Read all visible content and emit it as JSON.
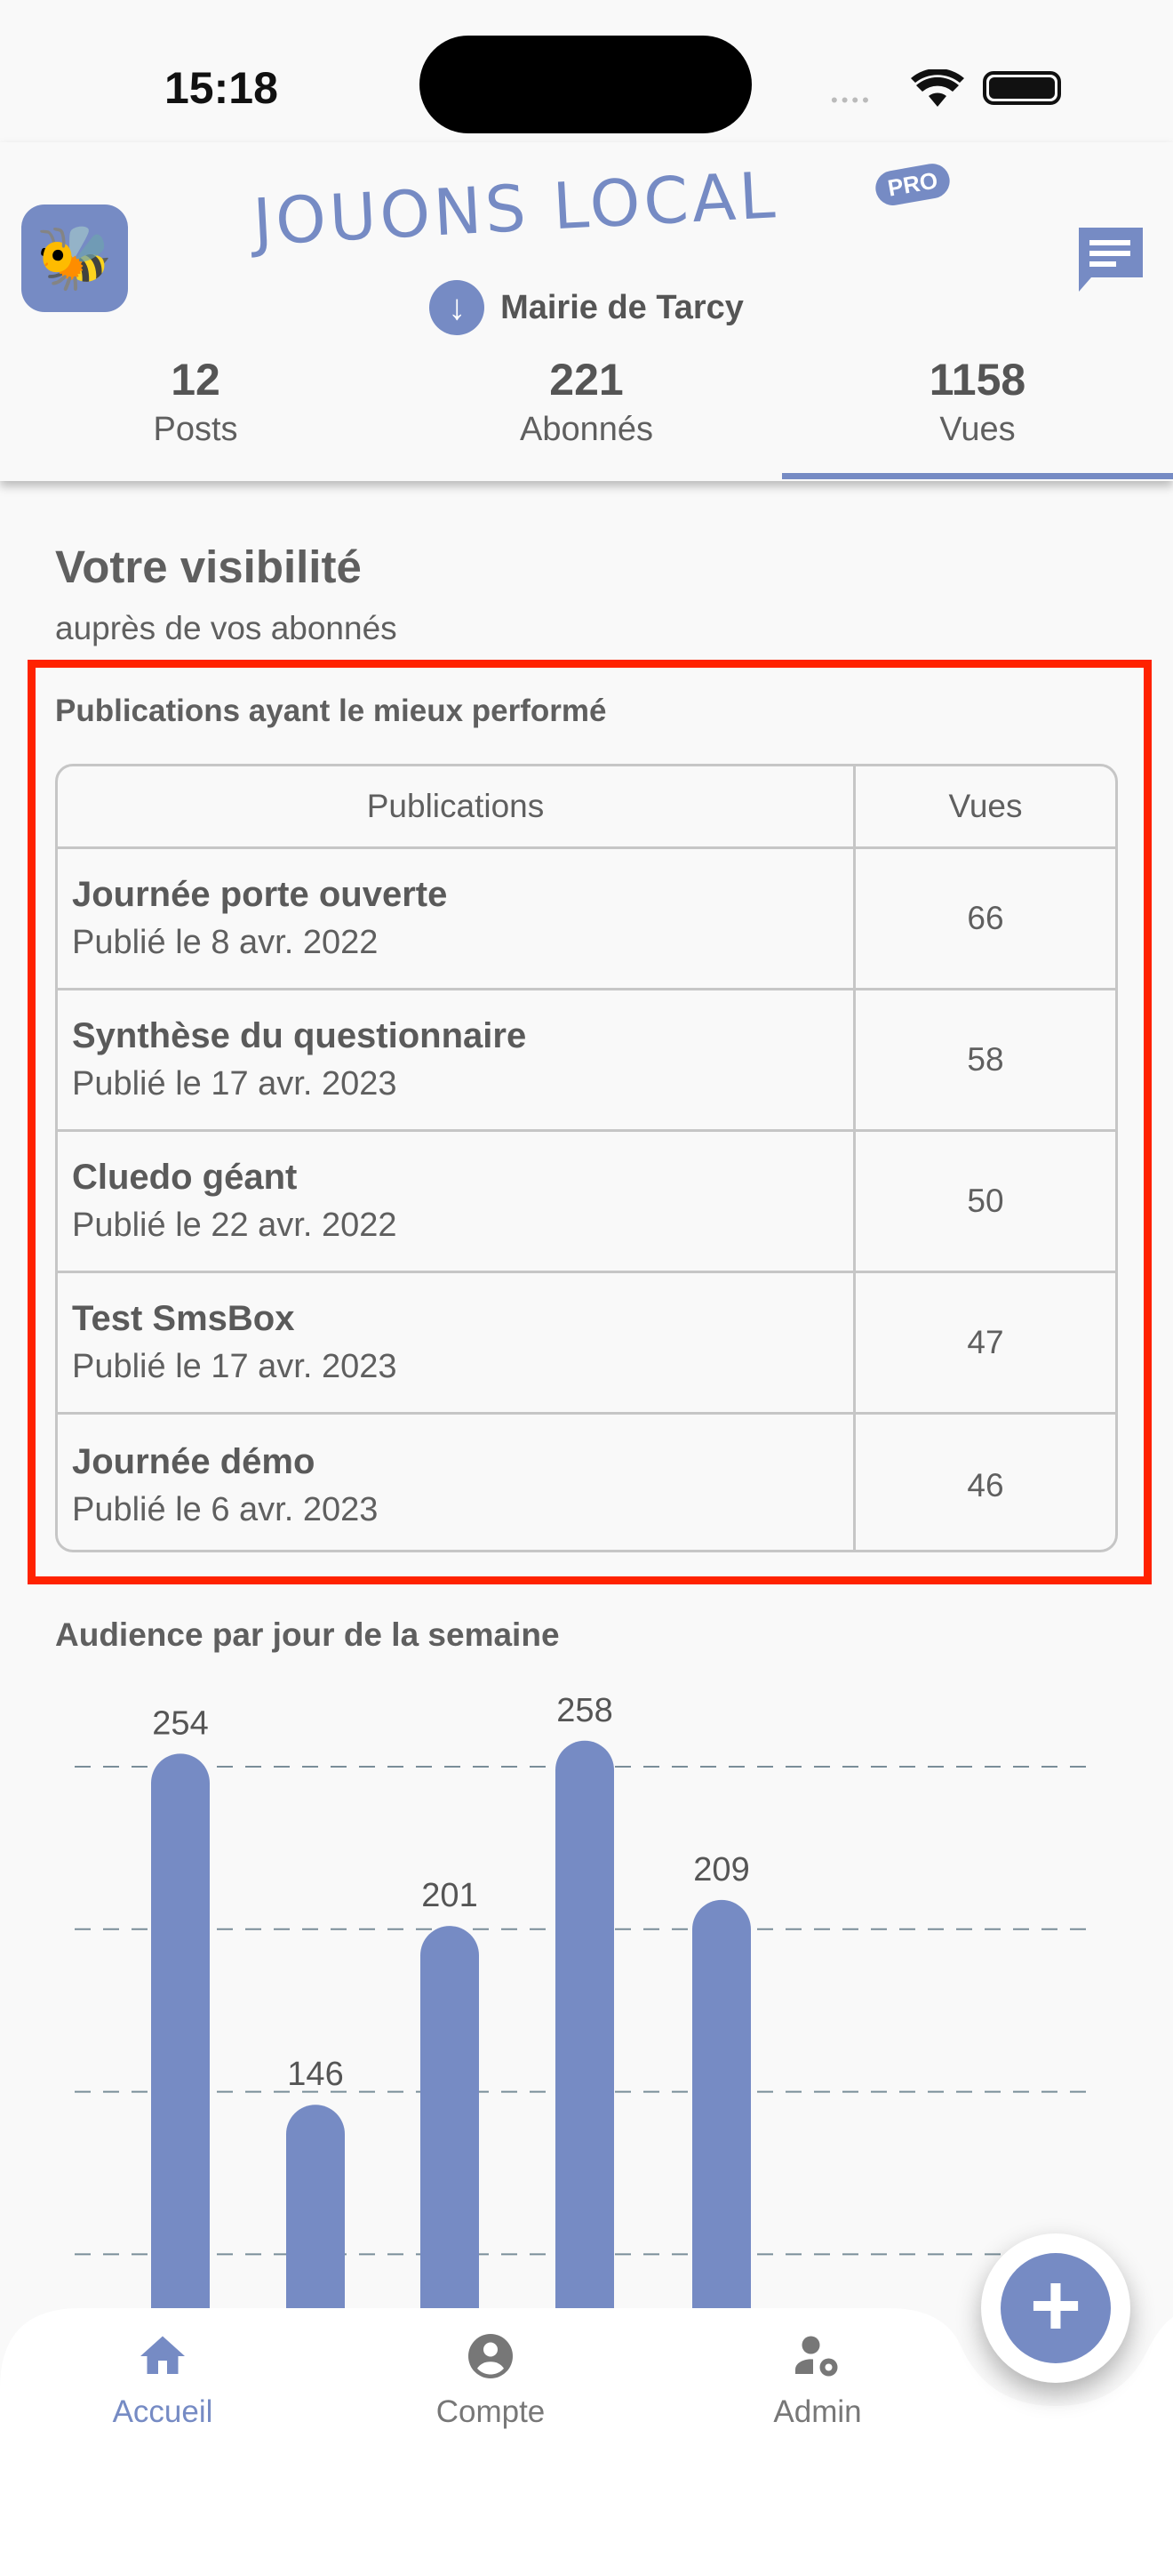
{
  "status_bar": {
    "time": "15:18"
  },
  "header": {
    "brand": "JOUONS LOCAL",
    "brand_badge": "PRO",
    "organization": "Mairie de Tarcy",
    "stats": [
      {
        "value": "12",
        "label": "Posts"
      },
      {
        "value": "221",
        "label": "Abonnés"
      },
      {
        "value": "1158",
        "label": "Vues"
      }
    ],
    "active_tab": "Vues"
  },
  "main": {
    "title": "Votre visibilité",
    "subtitle": "auprès de vos abonnés",
    "top_posts": {
      "title": "Publications ayant le mieux performé",
      "columns": [
        "Publications",
        "Vues"
      ],
      "rows": [
        {
          "title": "Journée porte ouverte",
          "date": "Publié le 8 avr. 2022",
          "views": "66"
        },
        {
          "title": "Synthèse du questionnaire",
          "date": "Publié le 17 avr. 2023",
          "views": "58"
        },
        {
          "title": "Cluedo géant",
          "date": "Publié le 22 avr. 2022",
          "views": "50"
        },
        {
          "title": "Test SmsBox",
          "date": "Publié le 17 avr. 2023",
          "views": "47"
        },
        {
          "title": "Journée  démo",
          "date": "Publié le 6 avr. 2023",
          "views": "46"
        }
      ]
    }
  },
  "chart_data": {
    "type": "bar",
    "title": "Audience par jour de la semaine",
    "values": [
      254,
      146,
      201,
      258,
      209
    ],
    "labels": [
      "254",
      "146",
      "201",
      "258",
      "209"
    ],
    "grid": true,
    "color": "#768bc4"
  },
  "nav": {
    "items": [
      {
        "label": "Accueil",
        "active": true
      },
      {
        "label": "Compte"
      },
      {
        "label": "Admin"
      }
    ]
  },
  "colors": {
    "accent": "#768bc4",
    "highlight": "#ff2200"
  }
}
